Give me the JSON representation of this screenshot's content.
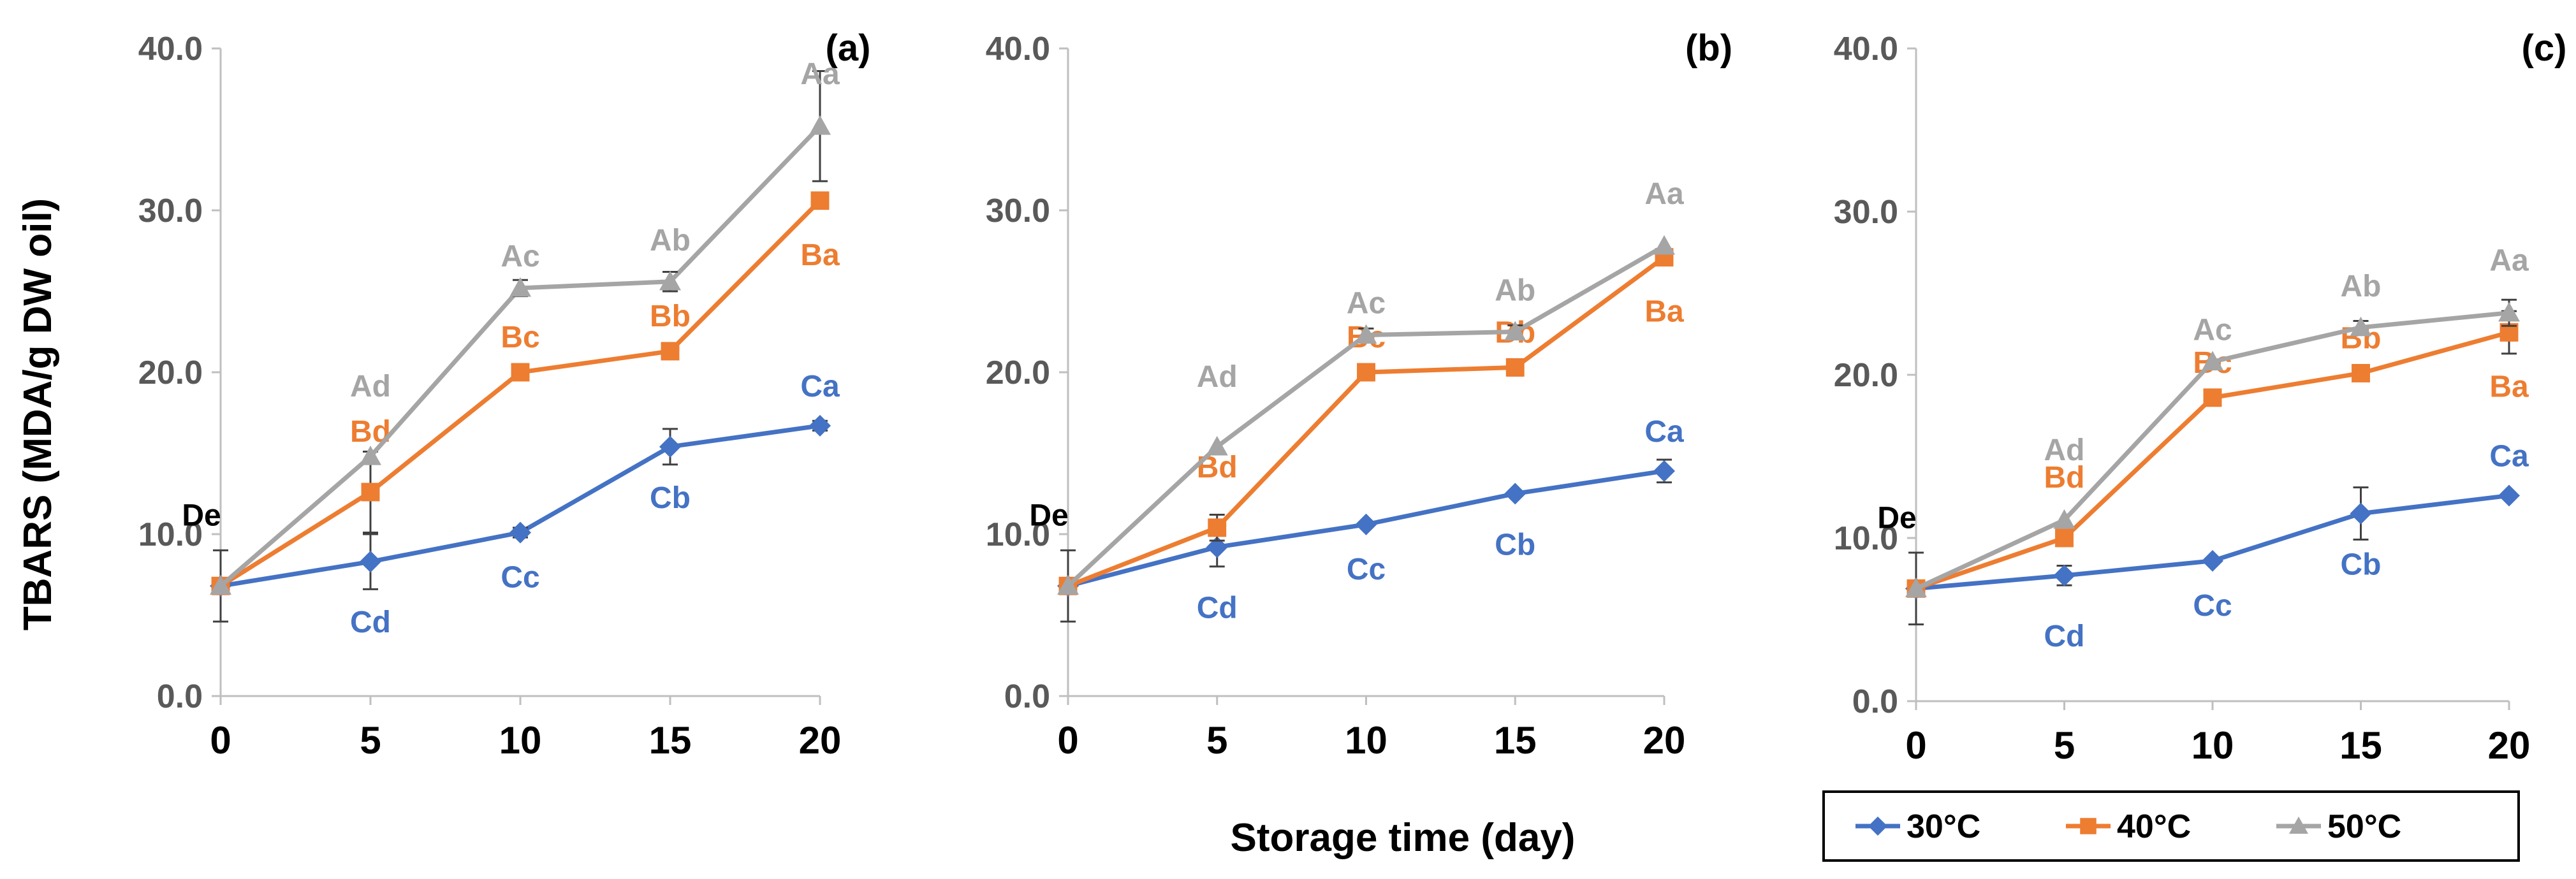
{
  "chart_data": [
    {
      "type": "line",
      "panel_label": "(a)",
      "x": [
        0,
        5,
        10,
        15,
        20
      ],
      "ylim": [
        0,
        40
      ],
      "yticks": [
        "0.0",
        "10.0",
        "20.0",
        "30.0",
        "40.0"
      ],
      "xticks": [
        "0",
        "5",
        "10",
        "15",
        "20"
      ],
      "series": [
        {
          "name": "30°C",
          "color": "#4472C4",
          "marker": "diamond",
          "values": [
            6.8,
            8.3,
            10.1,
            15.4,
            16.7
          ],
          "errors": [
            2.2,
            1.7,
            0.3,
            1.1,
            0.3
          ],
          "labels": [
            "De",
            "Cd",
            "Cc",
            "Cb",
            "Ca"
          ]
        },
        {
          "name": "40°C",
          "color": "#ED7D31",
          "marker": "square",
          "values": [
            6.8,
            12.6,
            20.0,
            21.3,
            30.6
          ],
          "errors": [
            0,
            2.5,
            0,
            0,
            0
          ],
          "labels": [
            "",
            "Bd",
            "Bc",
            "Bb",
            "Ba"
          ]
        },
        {
          "name": "50°C",
          "color": "#A5A5A5",
          "marker": "triangle",
          "values": [
            6.8,
            14.8,
            25.2,
            25.6,
            35.2
          ],
          "errors": [
            0,
            0,
            0.5,
            0.6,
            3.4
          ],
          "labels": [
            "",
            "Ad",
            "Ac",
            "Ab",
            "Aa"
          ]
        }
      ]
    },
    {
      "type": "line",
      "panel_label": "(b)",
      "x": [
        0,
        5,
        10,
        15,
        20
      ],
      "ylim": [
        0,
        40
      ],
      "yticks": [
        "0.0",
        "10.0",
        "20.0",
        "30.0",
        "40.0"
      ],
      "xticks": [
        "0",
        "5",
        "10",
        "15",
        "20"
      ],
      "series": [
        {
          "name": "30°C",
          "color": "#4472C4",
          "marker": "diamond",
          "values": [
            6.8,
            9.2,
            10.6,
            12.5,
            13.9
          ],
          "errors": [
            2.2,
            1.2,
            0,
            0,
            0.7
          ],
          "labels": [
            "De",
            "Cd",
            "Cc",
            "Cb",
            "Ca"
          ]
        },
        {
          "name": "40°C",
          "color": "#ED7D31",
          "marker": "square",
          "values": [
            6.8,
            10.4,
            20.0,
            20.3,
            27.1
          ],
          "errors": [
            0,
            0.8,
            0,
            0.5,
            0
          ],
          "labels": [
            "",
            "Bd",
            "Bc",
            "Bb",
            "Ba"
          ]
        },
        {
          "name": "50°C",
          "color": "#A5A5A5",
          "marker": "triangle",
          "values": [
            6.8,
            15.4,
            22.3,
            22.5,
            27.8
          ],
          "errors": [
            0,
            0,
            0.4,
            0.4,
            0
          ],
          "labels": [
            "",
            "Ad",
            "Ac",
            "Ab",
            "Aa"
          ]
        }
      ]
    },
    {
      "type": "line",
      "panel_label": "(c)",
      "x": [
        0,
        5,
        10,
        15,
        20
      ],
      "ylim": [
        0,
        40
      ],
      "yticks": [
        "0.0",
        "10.0",
        "20.0",
        "30.0",
        "40.0"
      ],
      "xticks": [
        "0",
        "5",
        "10",
        "15",
        "20"
      ],
      "series": [
        {
          "name": "30°C",
          "color": "#4472C4",
          "marker": "diamond",
          "values": [
            6.9,
            7.7,
            8.6,
            11.5,
            12.6
          ],
          "errors": [
            2.2,
            0.6,
            0,
            1.6,
            0
          ],
          "labels": [
            "De",
            "Cd",
            "Cc",
            "Cb",
            "Ca"
          ]
        },
        {
          "name": "40°C",
          "color": "#ED7D31",
          "marker": "square",
          "values": [
            6.9,
            10.0,
            18.6,
            20.1,
            22.6
          ],
          "errors": [
            0,
            0,
            0,
            0,
            1.3
          ],
          "labels": [
            "",
            "Bd",
            "Bc",
            "Bb",
            "Ba"
          ]
        },
        {
          "name": "50°C",
          "color": "#A5A5A5",
          "marker": "triangle",
          "values": [
            6.9,
            11.1,
            20.8,
            22.9,
            23.8
          ],
          "errors": [
            0,
            0,
            0,
            0.4,
            0.8
          ],
          "labels": [
            "",
            "Ad",
            "Ac",
            "Ab",
            "Aa"
          ]
        }
      ]
    }
  ],
  "ylabel": "TBARS (MDA/g DW oil)",
  "xlabel": "Storage time (day)",
  "legend": [
    {
      "label": "30°C",
      "color": "#4472C4",
      "marker": "diamond"
    },
    {
      "label": "40°C",
      "color": "#ED7D31",
      "marker": "square"
    },
    {
      "label": "50°C",
      "color": "#A5A5A5",
      "marker": "triangle"
    }
  ]
}
